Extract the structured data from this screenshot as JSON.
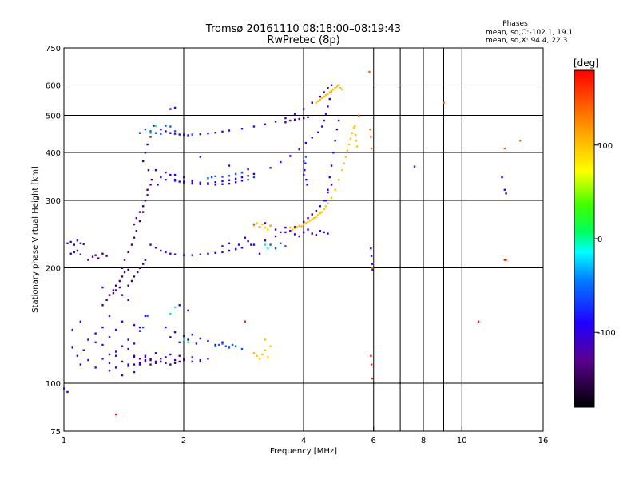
{
  "chart_data": {
    "type": "scatter",
    "title": "Tromsø 20161110 08:18:00–08:19:43",
    "subtitle": "RwPretec (8p)",
    "xlabel": "Frequency [MHz]",
    "ylabel": "Stationary phase Virtual Height [km]",
    "x_scale": "log",
    "y_scale": "log",
    "xlim": [
      1,
      16
    ],
    "ylim": [
      75,
      750
    ],
    "x_ticks": [
      1,
      2,
      4,
      6,
      8,
      10,
      16
    ],
    "x_gridlines": [
      2,
      4,
      6,
      7,
      8,
      9,
      10
    ],
    "y_ticks": [
      75,
      100,
      200,
      300,
      400,
      500,
      600,
      750
    ],
    "grid": true,
    "phases_box": {
      "title": "Phases",
      "line1": "mean, sd,O:-102.1, 19.1",
      "line2": "mean, sd,X:  94.4, 22.3"
    },
    "colorbar": {
      "label": "[deg]",
      "range": [
        -180,
        180
      ],
      "ticks": [
        100,
        0,
        -100
      ]
    },
    "series": [
      {
        "phase": -100,
        "x": [
          1.02,
          1.04,
          1.06,
          1.08,
          1.1,
          1.12,
          1.04,
          1.06,
          1.08,
          1.1,
          1.05,
          1.08,
          1.12,
          1.15,
          1.2,
          1.25,
          1.3,
          1.35,
          1.4,
          1.45,
          1.5,
          1.1,
          1.15,
          1.2,
          1.25,
          1.3,
          1.35,
          1.4,
          1.45,
          1.5,
          1.55,
          1.6,
          1.3,
          1.35,
          1.4,
          1.45,
          1.5,
          1.2,
          1.25,
          1.3,
          1.35,
          1.4,
          1.45,
          1.5,
          1.55,
          1.6,
          1.8,
          1.85,
          1.9,
          1.95,
          2.0,
          2.05,
          2.1,
          2.15,
          2.2,
          2.3,
          2.4,
          2.5,
          1.6,
          1.65,
          1.7,
          1.75,
          1.8,
          1.85,
          1.9,
          1.95,
          2.0,
          2.1,
          2.2,
          2.3,
          1.65,
          1.7,
          1.75,
          1.8,
          1.85,
          1.9,
          2.0,
          2.1,
          2.2,
          2.3,
          2.4,
          2.5,
          2.6,
          2.7,
          2.8,
          3.0,
          3.2,
          3.4,
          3.6,
          3.8,
          4.0,
          4.1,
          4.2,
          4.3,
          4.4,
          4.5,
          4.6,
          4.7,
          1.75,
          1.8,
          1.85,
          1.9,
          1.95,
          2.0,
          2.05,
          2.1,
          2.2,
          2.3,
          2.4,
          2.5,
          2.6,
          2.8,
          3.0,
          3.2,
          3.4,
          3.6,
          3.8,
          4.0,
          4.2,
          4.4,
          4.5,
          4.6,
          1.9,
          2.0,
          2.1,
          2.2,
          2.3,
          2.4,
          2.5,
          2.6,
          2.7,
          2.8,
          1.8,
          1.85,
          1.9,
          1.95,
          2.0,
          2.1,
          2.2,
          2.3,
          2.4,
          2.5,
          2.6,
          2.7,
          2.8,
          2.9,
          3.0,
          3.3,
          3.5,
          3.7,
          3.9,
          4.05,
          4.2,
          4.35,
          4.45,
          4.5,
          4.55,
          4.6,
          4.65,
          4.68,
          4.7,
          1.7,
          1.75,
          1.8,
          1.9,
          2.0,
          2.1,
          2.2,
          4.55,
          4.6,
          4.65,
          4.7,
          4.75,
          4.8,
          4.85,
          4.9,
          1.85,
          1.9,
          2.5,
          2.6,
          2.7,
          2.75,
          2.8,
          2.85,
          2.9,
          2.95,
          3.0,
          3.1,
          3.2,
          3.3,
          3.4,
          3.5,
          3.6,
          3.7,
          3.8,
          3.9,
          4.0,
          4.1,
          4.2,
          4.3,
          4.4,
          4.5,
          4.6,
          1.6,
          4.0,
          4.02,
          4.04,
          4.06,
          4.08,
          1.0,
          1.02,
          1.25,
          1.4,
          1.45,
          3.1,
          5.9,
          5.92,
          5.94,
          5.96,
          1.05,
          1.1,
          1.3,
          1.55,
          1.95,
          2.05,
          7.6,
          12.6,
          12.8,
          12.9,
          2.2,
          2.6,
          2.8,
          2.9
        ],
        "y": [
          232,
          234,
          230,
          236,
          232,
          231,
          218,
          220,
          222,
          217,
          124,
          118,
          122,
          130,
          128,
          126,
          119,
          121,
          125,
          123,
          127,
          112,
          115,
          110,
          116,
          113,
          118,
          114,
          111,
          117,
          112,
          115,
          108,
          110,
          105,
          112,
          107,
          135,
          140,
          132,
          138,
          145,
          130,
          142,
          137,
          150,
          140,
          132,
          136,
          128,
          133,
          130,
          134,
          127,
          131,
          129,
          126,
          128,
          118,
          116,
          120,
          114,
          117,
          119,
          115,
          118,
          116,
          117,
          114,
          116,
          230,
          226,
          222,
          220,
          218,
          217,
          216,
          216,
          217,
          218,
          219,
          220,
          222,
          224,
          226,
          230,
          236,
          242,
          248,
          256,
          264,
          270,
          276,
          282,
          290,
          300,
          315,
          330,
          460,
          455,
          450,
          448,
          446,
          445,
          444,
          446,
          447,
          449,
          451,
          454,
          457,
          462,
          468,
          474,
          482,
          492,
          505,
          520,
          540,
          560,
          575,
          590,
          350,
          345,
          338,
          334,
          331,
          330,
          331,
          332,
          335,
          338,
          355,
          350,
          340,
          336,
          334,
          332,
          331,
          333,
          335,
          337,
          339,
          342,
          345,
          348,
          352,
          365,
          378,
          392,
          408,
          424,
          438,
          452,
          468,
          485,
          505,
          528,
          552,
          575,
          600,
          360,
          345,
          340,
          338,
          336,
          335,
          334,
          300,
          320,
          345,
          370,
          400,
          430,
          460,
          485,
          520,
          524,
          228,
          232,
          224,
          230,
          226,
          240,
          235,
          230,
          260,
          256,
          262,
          258,
          252,
          248,
          255,
          250,
          245,
          242,
          248,
          252,
          246,
          244,
          250,
          248,
          246,
          210,
          350,
          360,
          375,
          340,
          330,
          97,
          95,
          178,
          170,
          165,
          218,
          225,
          215,
          205,
          198,
          138,
          145,
          150,
          140,
          160,
          155,
          368,
          345,
          320,
          313,
          390,
          370,
          355,
          362
        ]
      },
      {
        "phase": -140,
        "x": [
          1.4,
          1.42,
          1.45,
          1.48,
          1.5,
          1.52,
          1.55,
          1.58,
          1.6,
          1.62,
          1.5,
          1.52,
          1.55,
          1.58,
          1.6,
          1.62,
          1.65,
          1.45,
          1.48,
          1.5,
          1.53,
          1.55,
          1.58,
          1.6,
          1.3,
          1.33,
          1.35,
          1.38,
          1.4,
          1.42,
          1.45,
          1.25,
          1.28,
          1.3,
          1.33,
          1.35,
          1.38,
          1.15,
          1.18,
          1.2,
          1.22,
          1.25,
          1.28,
          1.5,
          1.55,
          1.6,
          1.65,
          1.7,
          1.75,
          1.8,
          1.5,
          1.55,
          1.6,
          1.65,
          1.7,
          1.75,
          1.8,
          1.85,
          1.9,
          1.95,
          2.0,
          2.1,
          2.2,
          1.6,
          1.62,
          1.65,
          1.68,
          1.58,
          1.63,
          1.66,
          1.72,
          3.6,
          3.7,
          3.8,
          3.9,
          4.0,
          4.1
        ],
        "y": [
          200,
          210,
          220,
          230,
          240,
          250,
          265,
          280,
          300,
          320,
          260,
          270,
          280,
          290,
          300,
          310,
          330,
          180,
          185,
          190,
          195,
          200,
          205,
          210,
          170,
          175,
          180,
          185,
          190,
          195,
          198,
          160,
          165,
          170,
          172,
          175,
          178,
          210,
          214,
          216,
          212,
          218,
          215,
          118,
          116,
          117,
          115,
          114,
          116,
          117,
          112,
          113,
          114,
          112,
          113,
          114,
          113,
          112,
          113,
          114,
          115,
          114,
          115,
          400,
          420,
          440,
          470,
          380,
          360,
          340,
          330,
          480,
          485,
          488,
          490,
          492,
          495
        ]
      },
      {
        "phase": -60,
        "x": [
          1.55,
          1.6,
          1.65,
          1.7,
          1.75,
          1.8,
          1.85,
          1.9,
          2.0,
          2.1,
          1.58,
          1.62,
          2.4,
          2.45,
          2.5,
          2.55,
          2.6,
          2.65,
          2.7,
          2.8,
          2.9,
          3.0,
          3.3,
          3.4,
          3.5,
          3.6,
          2.3,
          2.35,
          2.4,
          2.5,
          2.6,
          2.7,
          2.8,
          4.0,
          4.05
        ],
        "y": [
          450,
          460,
          455,
          450,
          448,
          470,
          468,
          455,
          450,
          446,
          140,
          150,
          125,
          126,
          127,
          125,
          124,
          126,
          125,
          123,
          340,
          345,
          230,
          225,
          232,
          228,
          343,
          345,
          347,
          346,
          348,
          352,
          355,
          380,
          390
        ]
      },
      {
        "phase": 100,
        "x": [
          3.0,
          3.05,
          3.1,
          3.15,
          3.2,
          3.25,
          3.3,
          3.0,
          3.05,
          3.1,
          3.15,
          3.2,
          3.25,
          3.7,
          3.75,
          3.8,
          3.85,
          3.9,
          3.95,
          4.0,
          4.05,
          4.1,
          4.15,
          4.2,
          4.25,
          4.3,
          4.35,
          4.4,
          4.45,
          4.5,
          4.55,
          4.6,
          4.7,
          4.8,
          4.9,
          5.0,
          5.05,
          5.1,
          5.15,
          5.2,
          5.25,
          5.3,
          5.35,
          5.38,
          5.4,
          5.42,
          5.45,
          4.3,
          4.35,
          4.4,
          4.45,
          4.5,
          4.55,
          4.6,
          4.65,
          4.7,
          4.75,
          4.8,
          4.85,
          4.9,
          4.95,
          5.0,
          3.2,
          3.3
        ],
        "y": [
          258,
          262,
          256,
          260,
          255,
          252,
          258,
          120,
          118,
          116,
          119,
          122,
          117,
          255,
          252,
          254,
          256,
          258,
          257,
          260,
          262,
          264,
          266,
          268,
          270,
          272,
          275,
          278,
          280,
          285,
          290,
          295,
          305,
          320,
          340,
          360,
          375,
          390,
          405,
          420,
          435,
          450,
          465,
          470,
          445,
          430,
          415,
          540,
          545,
          550,
          555,
          560,
          565,
          570,
          575,
          580,
          585,
          590,
          595,
          600,
          590,
          585,
          130,
          125
        ]
      },
      {
        "phase": 140,
        "x": [
          5.5,
          5.85,
          5.88,
          5.9,
          5.92,
          5.95,
          9.0,
          12.8,
          12.9,
          14.0
        ],
        "y": [
          500,
          650,
          460,
          440,
          410,
          200,
          540,
          410,
          210,
          430
        ]
      },
      {
        "phase": 0,
        "x": [
          1.65,
          1.7,
          2.0,
          2.05,
          3.2,
          3.25,
          1.85,
          1.9
        ],
        "y": [
          450,
          470,
          130,
          128,
          230,
          225,
          152,
          158
        ]
      },
      {
        "phase": 170,
        "x": [
          1.35,
          2.85,
          11.0,
          12.8,
          5.9,
          5.92,
          5.95
        ],
        "y": [
          83,
          145,
          145,
          210,
          118,
          112,
          103
        ]
      }
    ]
  }
}
